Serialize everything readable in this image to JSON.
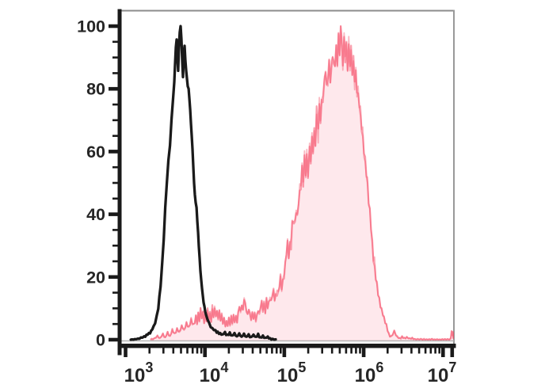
{
  "chart_data": {
    "type": "area",
    "title": "",
    "description": "Flow cytometry overlay histogram: black open histogram (left peak) and red filled histogram (right peak)",
    "x_axis": {
      "scale": "log10",
      "tick_exponents": [
        3,
        4,
        5,
        6,
        7
      ],
      "tick_base": "10",
      "range_log": [
        2.93,
        7.14
      ],
      "minor_ticks": "logarithmic 2-9 per decade"
    },
    "y_axis": {
      "ticks": [
        0,
        20,
        40,
        60,
        80,
        100
      ],
      "minor_step": 5,
      "range": [
        0,
        105
      ]
    },
    "series": [
      {
        "name": "red-filled-histogram",
        "stroke_color": "#f5445f",
        "stroke_opacity": 0.5,
        "fill_color": "#f5445f",
        "fill_opacity": 0.12,
        "noise_amplitude": 3.2,
        "points_logx_y": [
          [
            3.313,
            0
          ],
          [
            3.362,
            0.3
          ],
          [
            3.402,
            1.2
          ],
          [
            3.431,
            0.4
          ],
          [
            3.471,
            1.7
          ],
          [
            3.5,
            0.7
          ],
          [
            3.53,
            2.3
          ],
          [
            3.56,
            1.1
          ],
          [
            3.589,
            3.0
          ],
          [
            3.619,
            1.8
          ],
          [
            3.649,
            3.6
          ],
          [
            3.678,
            2.4
          ],
          [
            3.708,
            4.4
          ],
          [
            3.738,
            3.0
          ],
          [
            3.767,
            5.4
          ],
          [
            3.797,
            3.8
          ],
          [
            3.826,
            6.2
          ],
          [
            3.856,
            4.6
          ],
          [
            3.886,
            7.4
          ],
          [
            3.901,
            5.6
          ],
          [
            3.915,
            8.4
          ],
          [
            3.93,
            6.2
          ],
          [
            3.945,
            9.8
          ],
          [
            3.96,
            7.0
          ],
          [
            3.975,
            8.6
          ],
          [
            3.99,
            6.0
          ],
          [
            4.004,
            8.8
          ],
          [
            4.019,
            6.4
          ],
          [
            4.034,
            9.2
          ],
          [
            4.049,
            7.0
          ],
          [
            4.064,
            8.2
          ],
          [
            4.079,
            6.2
          ],
          [
            4.093,
            9.4
          ],
          [
            4.108,
            7.4
          ],
          [
            4.123,
            9.8
          ],
          [
            4.138,
            7.6
          ],
          [
            4.153,
            9.0
          ],
          [
            4.168,
            7.0
          ],
          [
            4.182,
            8.8
          ],
          [
            4.197,
            6.2
          ],
          [
            4.212,
            7.6
          ],
          [
            4.227,
            5.2
          ],
          [
            4.242,
            6.6
          ],
          [
            4.257,
            4.4
          ],
          [
            4.271,
            5.8
          ],
          [
            4.286,
            4.6
          ],
          [
            4.301,
            6.8
          ],
          [
            4.316,
            5.0
          ],
          [
            4.331,
            7.2
          ],
          [
            4.345,
            5.4
          ],
          [
            4.36,
            7.8
          ],
          [
            4.375,
            5.8
          ],
          [
            4.39,
            7.0
          ],
          [
            4.405,
            5.6
          ],
          [
            4.419,
            8.6
          ],
          [
            4.434,
            10.8
          ],
          [
            4.449,
            8.2
          ],
          [
            4.464,
            11.2
          ],
          [
            4.479,
            9.0
          ],
          [
            4.494,
            13.6
          ],
          [
            4.508,
            11.4
          ],
          [
            4.523,
            9.6
          ],
          [
            4.538,
            8.0
          ],
          [
            4.553,
            9.8
          ],
          [
            4.568,
            7.4
          ],
          [
            4.582,
            6.6
          ],
          [
            4.597,
            8.4
          ],
          [
            4.612,
            6.8
          ],
          [
            4.627,
            8.2
          ],
          [
            4.642,
            6.4
          ],
          [
            4.656,
            7.6
          ],
          [
            4.671,
            9.4
          ],
          [
            4.686,
            8.0
          ],
          [
            4.701,
            10.6
          ],
          [
            4.716,
            12.0
          ],
          [
            4.73,
            9.8
          ],
          [
            4.745,
            11.4
          ],
          [
            4.76,
            9.2
          ],
          [
            4.775,
            12.8
          ],
          [
            4.79,
            10.6
          ],
          [
            4.804,
            11.6
          ],
          [
            4.819,
            13.8
          ],
          [
            4.834,
            12.0
          ],
          [
            4.849,
            14.6
          ],
          [
            4.864,
            15.4
          ],
          [
            4.878,
            12.8
          ],
          [
            4.893,
            14.0
          ],
          [
            4.908,
            16.2
          ],
          [
            4.923,
            15.0
          ],
          [
            4.938,
            17.8
          ],
          [
            4.952,
            19.4
          ],
          [
            4.967,
            17.0
          ],
          [
            4.982,
            18.4
          ],
          [
            4.997,
            21.5
          ],
          [
            5.012,
            24
          ],
          [
            5.026,
            28
          ],
          [
            5.041,
            31
          ],
          [
            5.056,
            27
          ],
          [
            5.071,
            30
          ],
          [
            5.086,
            34
          ],
          [
            5.1,
            36
          ],
          [
            5.121,
            40
          ],
          [
            5.135,
            37
          ],
          [
            5.15,
            42
          ],
          [
            5.165,
            39
          ],
          [
            5.18,
            44
          ],
          [
            5.195,
            47
          ],
          [
            5.209,
            50
          ],
          [
            5.224,
            55
          ],
          [
            5.239,
            51
          ],
          [
            5.254,
            57
          ],
          [
            5.269,
            53
          ],
          [
            5.283,
            58
          ],
          [
            5.298,
            54
          ],
          [
            5.318,
            61
          ],
          [
            5.333,
            58
          ],
          [
            5.348,
            64
          ],
          [
            5.362,
            61
          ],
          [
            5.377,
            66
          ],
          [
            5.392,
            63
          ],
          [
            5.407,
            71
          ],
          [
            5.427,
            68
          ],
          [
            5.441,
            74
          ],
          [
            5.456,
            71
          ],
          [
            5.471,
            76
          ],
          [
            5.486,
            79
          ],
          [
            5.506,
            81
          ],
          [
            5.52,
            86
          ],
          [
            5.535,
            80
          ],
          [
            5.55,
            84
          ],
          [
            5.565,
            88
          ],
          [
            5.58,
            83
          ],
          [
            5.594,
            86
          ],
          [
            5.609,
            91
          ],
          [
            5.624,
            87
          ],
          [
            5.639,
            89
          ],
          [
            5.654,
            93
          ],
          [
            5.668,
            88
          ],
          [
            5.683,
            96
          ],
          [
            5.698,
            92
          ],
          [
            5.711,
            100
          ],
          [
            5.723,
            95
          ],
          [
            5.738,
            89
          ],
          [
            5.753,
            95
          ],
          [
            5.767,
            91
          ],
          [
            5.782,
            94
          ],
          [
            5.797,
            87
          ],
          [
            5.812,
            93
          ],
          [
            5.827,
            89
          ],
          [
            5.841,
            91
          ],
          [
            5.856,
            85
          ],
          [
            5.871,
            88
          ],
          [
            5.886,
            83
          ],
          [
            5.901,
            85
          ],
          [
            5.915,
            80
          ],
          [
            5.93,
            78
          ],
          [
            5.945,
            75
          ],
          [
            5.96,
            71
          ],
          [
            5.975,
            68
          ],
          [
            5.989,
            64
          ],
          [
            6.004,
            60
          ],
          [
            6.019,
            56
          ],
          [
            6.034,
            53
          ],
          [
            6.048,
            49
          ],
          [
            6.063,
            44
          ],
          [
            6.078,
            40
          ],
          [
            6.093,
            36
          ],
          [
            6.109,
            30
          ],
          [
            6.123,
            26
          ],
          [
            6.138,
            23
          ],
          [
            6.153,
            20
          ],
          [
            6.168,
            17
          ],
          [
            6.182,
            14.5
          ],
          [
            6.197,
            12.5
          ],
          [
            6.212,
            11
          ],
          [
            6.227,
            9.5
          ],
          [
            6.242,
            8.5
          ],
          [
            6.256,
            7
          ],
          [
            6.271,
            5.5
          ],
          [
            6.286,
            4.5
          ],
          [
            6.301,
            3
          ],
          [
            6.316,
            1.8
          ],
          [
            6.33,
            1.2
          ],
          [
            6.345,
            1.0
          ],
          [
            6.365,
            1.8
          ],
          [
            6.385,
            2.6
          ],
          [
            6.405,
            1.6
          ],
          [
            6.424,
            0.8
          ],
          [
            6.454,
            0.5
          ],
          [
            6.484,
            0.9
          ],
          [
            6.513,
            0.4
          ],
          [
            6.543,
            0.7
          ],
          [
            6.582,
            0.3
          ],
          [
            6.612,
            0.5
          ],
          [
            6.642,
            0.2
          ],
          [
            6.681,
            0.1
          ],
          [
            6.76,
            0.05
          ],
          [
            6.859,
            0.05
          ],
          [
            6.958,
            0.05
          ],
          [
            7.057,
            0.1
          ],
          [
            7.096,
            0.2
          ],
          [
            7.101,
            1.2
          ],
          [
            7.108,
            2.6
          ],
          [
            7.116,
            1.6
          ],
          [
            7.124,
            2.2
          ],
          [
            7.131,
            0.3
          ]
        ]
      },
      {
        "name": "black-outline-histogram",
        "stroke_color": "#1a1a1a",
        "stroke_opacity": 1,
        "fill_color": "none",
        "fill_opacity": 0,
        "noise_amplitude": 0.35,
        "points_logx_y": [
          [
            3.066,
            0
          ],
          [
            3.115,
            0.1
          ],
          [
            3.155,
            0.3
          ],
          [
            3.194,
            0.6
          ],
          [
            3.234,
            1.0
          ],
          [
            3.263,
            1.5
          ],
          [
            3.293,
            2.0
          ],
          [
            3.323,
            2.8
          ],
          [
            3.352,
            4.2
          ],
          [
            3.372,
            5.5
          ],
          [
            3.392,
            7.5
          ],
          [
            3.412,
            10
          ],
          [
            3.441,
            17
          ],
          [
            3.461,
            24
          ],
          [
            3.481,
            32
          ],
          [
            3.5,
            42
          ],
          [
            3.52,
            50
          ],
          [
            3.54,
            57
          ],
          [
            3.56,
            62
          ],
          [
            3.579,
            70
          ],
          [
            3.599,
            77
          ],
          [
            3.614,
            82
          ],
          [
            3.624,
            88
          ],
          [
            3.634,
            93
          ],
          [
            3.644,
            96
          ],
          [
            3.654,
            90
          ],
          [
            3.663,
            86
          ],
          [
            3.673,
            93
          ],
          [
            3.683,
            98
          ],
          [
            3.694,
            100
          ],
          [
            3.704,
            96
          ],
          [
            3.714,
            89
          ],
          [
            3.724,
            84
          ],
          [
            3.734,
            91
          ],
          [
            3.744,
            94
          ],
          [
            3.753,
            89
          ],
          [
            3.763,
            86
          ],
          [
            3.773,
            83
          ],
          [
            3.783,
            81
          ],
          [
            3.794,
            80
          ],
          [
            3.804,
            77
          ],
          [
            3.814,
            73
          ],
          [
            3.824,
            69
          ],
          [
            3.833,
            65
          ],
          [
            3.843,
            61
          ],
          [
            3.853,
            55
          ],
          [
            3.863,
            50
          ],
          [
            3.873,
            46
          ],
          [
            3.883,
            44
          ],
          [
            3.894,
            42
          ],
          [
            3.904,
            38
          ],
          [
            3.914,
            34
          ],
          [
            3.923,
            30
          ],
          [
            3.933,
            26
          ],
          [
            3.943,
            22
          ],
          [
            3.953,
            19
          ],
          [
            3.963,
            16.5
          ],
          [
            3.973,
            14
          ],
          [
            3.983,
            12
          ],
          [
            3.994,
            10.5
          ],
          [
            4.004,
            9
          ],
          [
            4.013,
            8
          ],
          [
            4.033,
            6.5
          ],
          [
            4.053,
            5.2
          ],
          [
            4.073,
            4.2
          ],
          [
            4.093,
            3.6
          ],
          [
            4.113,
            3.2
          ],
          [
            4.133,
            2.8
          ],
          [
            4.162,
            2.4
          ],
          [
            4.193,
            2.0
          ],
          [
            4.223,
            1.6
          ],
          [
            4.252,
            2.4
          ],
          [
            4.283,
            1.3
          ],
          [
            4.313,
            2.2
          ],
          [
            4.342,
            1.1
          ],
          [
            4.372,
            2.0
          ],
          [
            4.402,
            1.0
          ],
          [
            4.432,
            1.8
          ],
          [
            4.462,
            0.9
          ],
          [
            4.492,
            1.7
          ],
          [
            4.522,
            0.8
          ],
          [
            4.551,
            1.6
          ],
          [
            4.582,
            0.8
          ],
          [
            4.612,
            1.5
          ],
          [
            4.641,
            0.7
          ],
          [
            4.671,
            1.4
          ],
          [
            4.702,
            0.6
          ],
          [
            4.731,
            1.2
          ],
          [
            4.761,
            0.5
          ],
          [
            4.791,
            0.9
          ],
          [
            4.821,
            0.4
          ],
          [
            4.851,
            0.2
          ],
          [
            4.891,
            0.1
          ]
        ]
      }
    ],
    "plot_style": {
      "top_border_color": "#8c8c8c",
      "right_border_color": "#999999",
      "zero_line_color": "#b3b3b3",
      "axis_color": "#1a1a1a",
      "label_color": "#262626"
    }
  }
}
